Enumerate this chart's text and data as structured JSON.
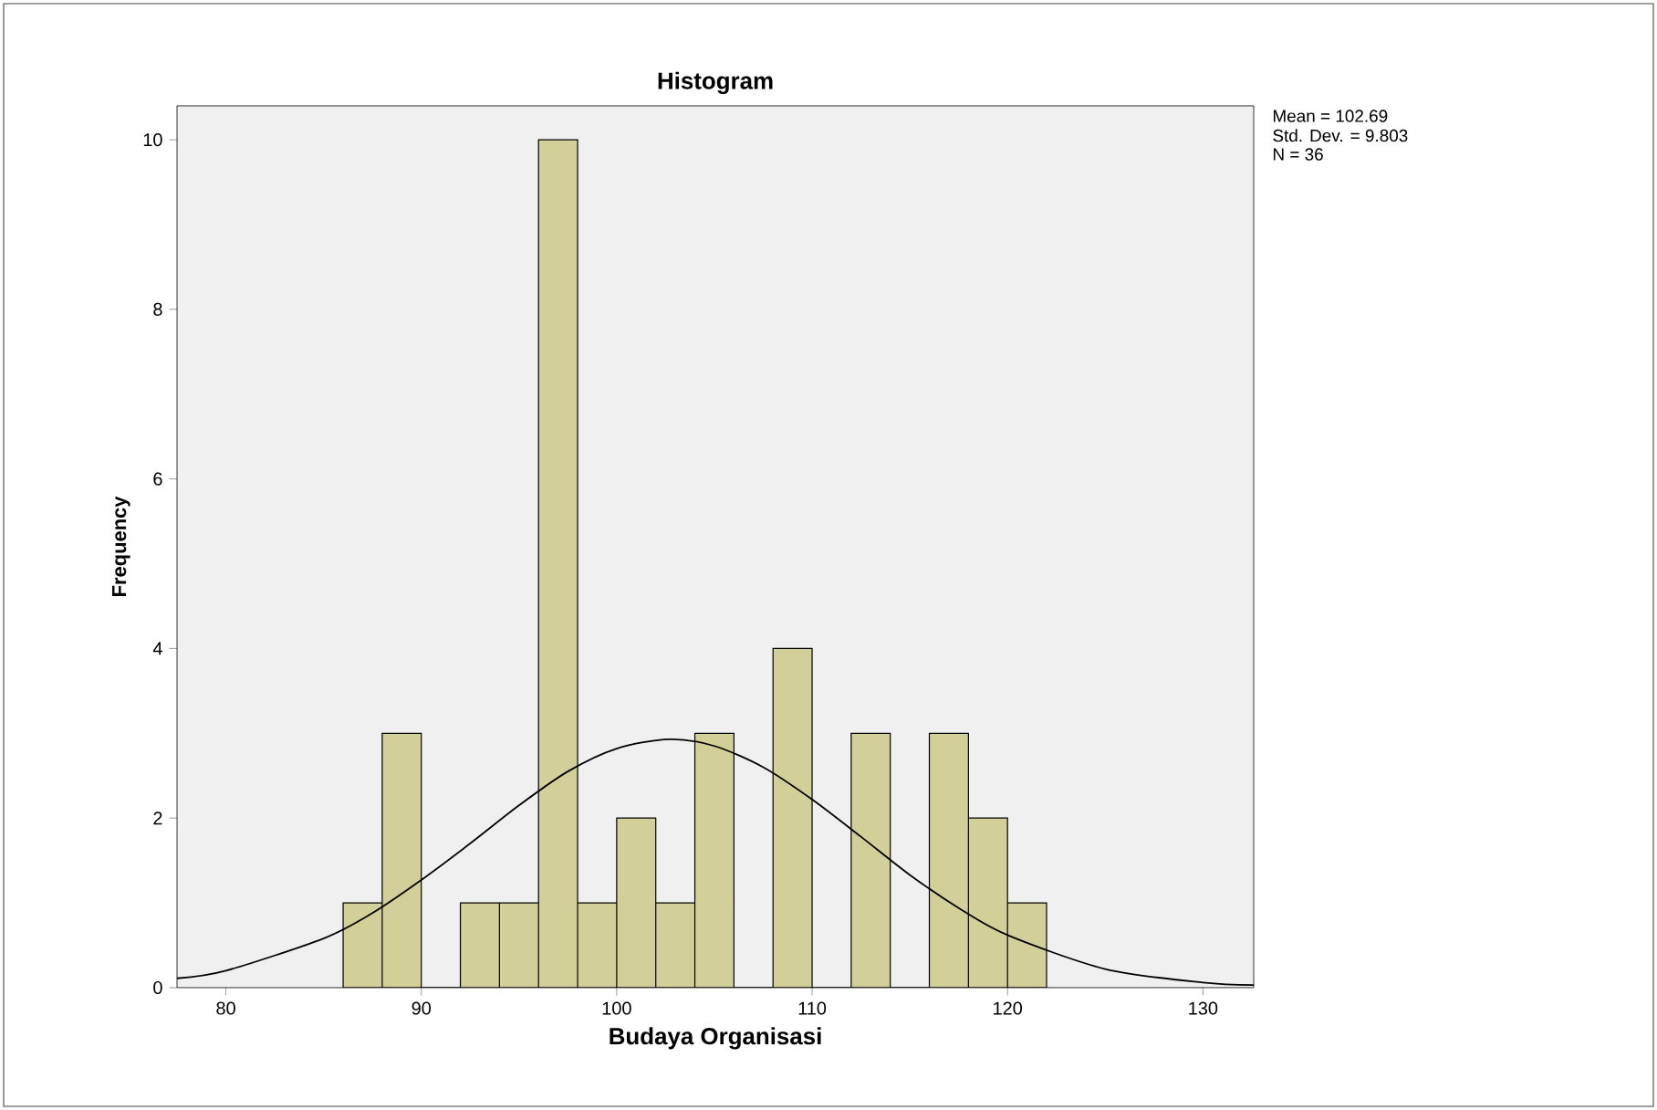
{
  "chart_data": {
    "type": "histogram",
    "title": "Histogram",
    "xlabel": "Budaya Organisasi",
    "ylabel": "Frequency",
    "bins": [
      86,
      88,
      90,
      92,
      94,
      96,
      98,
      100,
      102,
      104,
      106,
      108,
      110,
      112,
      114,
      116,
      118,
      120,
      122
    ],
    "values": [
      1,
      3,
      0,
      1,
      1,
      10,
      1,
      2,
      1,
      3,
      0,
      4,
      0,
      3,
      0,
      3,
      2,
      1
    ],
    "color": "#d3cf98",
    "series": [
      {
        "type": "line",
        "color": "#000000",
        "x": [
          77.5,
          80,
          85,
          87.5,
          90,
          92.5,
          95,
          97.5,
          100,
          102.7,
          105,
          107.5,
          110,
          112.5,
          115,
          117.5,
          120,
          125,
          130,
          132.6
        ],
        "values": [
          0.11,
          0.2,
          0.58,
          0.88,
          1.27,
          1.7,
          2.15,
          2.55,
          2.82,
          2.93,
          2.85,
          2.6,
          2.22,
          1.78,
          1.33,
          0.94,
          0.62,
          0.22,
          0.06,
          0.03
        ]
      }
    ],
    "xlim": [
      77.5,
      132.6
    ],
    "ylim": [
      0,
      10.4
    ],
    "xticks": [
      80,
      90,
      100,
      110,
      120,
      130
    ],
    "yticks": [
      0,
      2,
      4,
      6,
      8,
      10
    ],
    "grid": false,
    "annotations": [
      "Mean = 102.69",
      "Std. Dev. = 9.803",
      "N = 36"
    ]
  }
}
